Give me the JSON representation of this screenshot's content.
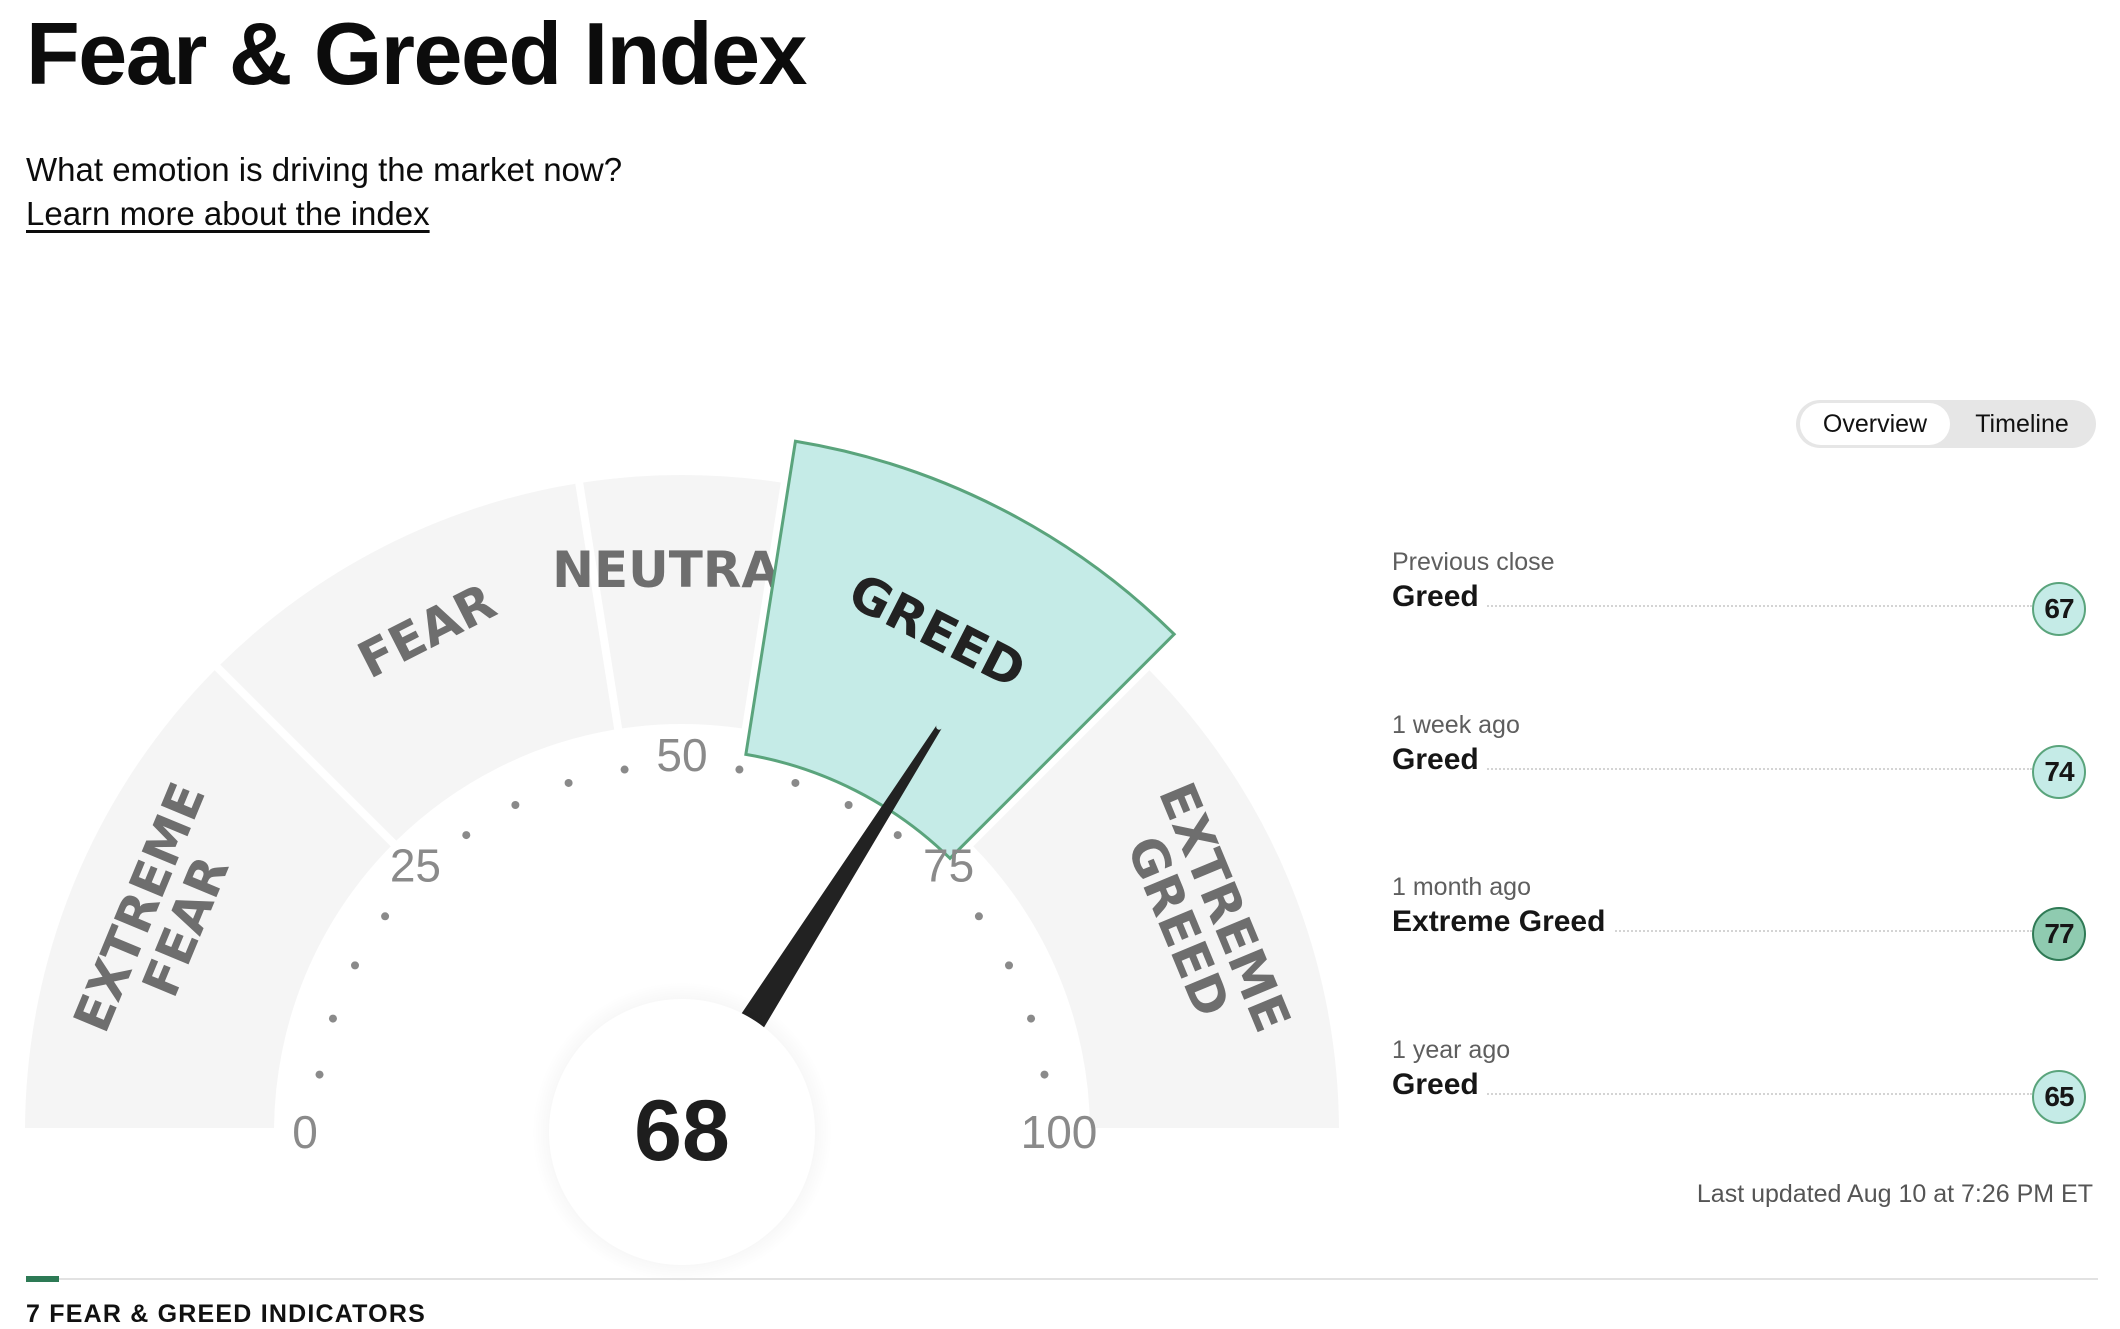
{
  "header": {
    "title": "Fear & Greed Index",
    "subtitle": "What emotion is driving the market now?",
    "learn_more": "Learn more about the index"
  },
  "gauge": {
    "score": 68,
    "score_label": "68",
    "scale_min": 0,
    "scale_max": 100,
    "active_zone": "GREED",
    "zones": [
      {
        "lines": [
          "EXTREME",
          "FEAR"
        ],
        "from": 0,
        "to": 25
      },
      {
        "lines": [
          "FEAR"
        ],
        "from": 25,
        "to": 45
      },
      {
        "lines": [
          "NEUTRAL"
        ],
        "from": 45,
        "to": 55
      },
      {
        "lines": [
          "GREED"
        ],
        "from": 55,
        "to": 75
      },
      {
        "lines": [
          "EXTREME",
          "GREED"
        ],
        "from": 75,
        "to": 100
      }
    ],
    "tick_labels": [
      "0",
      "25",
      "50",
      "75",
      "100"
    ],
    "colors": {
      "zone": "#f5f5f5",
      "active_fill": "#c5ebe7",
      "active_stroke": "#5aa47c",
      "needle": "#222222"
    }
  },
  "view_toggle": {
    "overview": "Overview",
    "timeline": "Timeline",
    "selected": "Overview"
  },
  "history": [
    {
      "label": "Previous close",
      "rating": "Greed",
      "value": "67"
    },
    {
      "label": "1 week ago",
      "rating": "Greed",
      "value": "74"
    },
    {
      "label": "1 month ago",
      "rating": "Extreme Greed",
      "value": "77"
    },
    {
      "label": "1 year ago",
      "rating": "Greed",
      "value": "65"
    }
  ],
  "last_updated": "Last updated Aug 10 at 7:26 PM ET",
  "indicators_heading": "7 FEAR & GREED INDICATORS"
}
